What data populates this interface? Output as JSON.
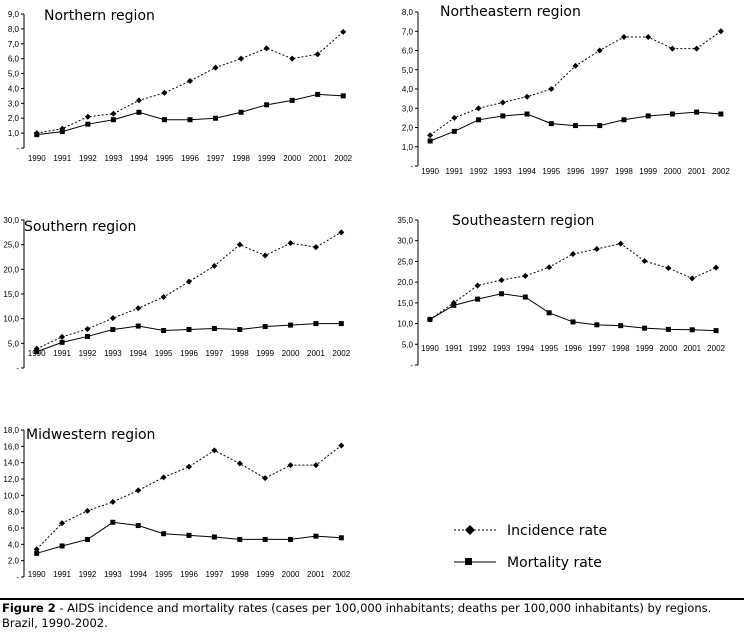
{
  "chart_data": [
    {
      "type": "line",
      "title": "Northern region",
      "x": [
        "1990",
        "1991",
        "1992",
        "1993",
        "1994",
        "1995",
        "1996",
        "1997",
        "1998",
        "1999",
        "2000",
        "2001",
        "2002"
      ],
      "yticks": [
        "-",
        "1,0",
        "2,0",
        "3,0",
        "4,0",
        "5,0",
        "6,0",
        "7,0",
        "8,0",
        "9,0"
      ],
      "ylim": [
        0,
        9
      ],
      "series": [
        {
          "name": "Incidence rate",
          "values": [
            1.0,
            1.3,
            2.1,
            2.3,
            3.2,
            3.7,
            4.5,
            5.4,
            6.0,
            6.7,
            6.0,
            6.3,
            7.8
          ]
        },
        {
          "name": "Mortality rate",
          "values": [
            0.9,
            1.1,
            1.6,
            1.9,
            2.4,
            1.9,
            1.9,
            2.0,
            2.4,
            2.9,
            3.2,
            3.6,
            3.5
          ]
        }
      ]
    },
    {
      "type": "line",
      "title": "Northeastern region",
      "x": [
        "1990",
        "1991",
        "1992",
        "1993",
        "1994",
        "1995",
        "1996",
        "1997",
        "1998",
        "1999",
        "2000",
        "2001",
        "2002"
      ],
      "yticks": [
        "-",
        "1,0",
        "2,0",
        "3,0",
        "4,0",
        "5,0",
        "6,0",
        "7,0",
        "8,0"
      ],
      "ylim": [
        0,
        8
      ],
      "series": [
        {
          "name": "Incidence rate",
          "values": [
            1.6,
            2.5,
            3.0,
            3.3,
            3.6,
            4.0,
            5.2,
            6.0,
            6.7,
            6.7,
            6.1,
            6.1,
            7.0
          ]
        },
        {
          "name": "Mortality rate",
          "values": [
            1.3,
            1.8,
            2.4,
            2.6,
            2.7,
            2.2,
            2.1,
            2.1,
            2.4,
            2.6,
            2.7,
            2.8,
            2.7
          ]
        }
      ]
    },
    {
      "type": "line",
      "title": "Southern region",
      "x": [
        "1990",
        "1991",
        "1992",
        "1993",
        "1994",
        "1995",
        "1996",
        "1997",
        "1998",
        "1999",
        "2000",
        "2001",
        "2002"
      ],
      "yticks": [
        "-",
        "5,0",
        "10,0",
        "15,0",
        "20,0",
        "25,0",
        "30,0"
      ],
      "ylim": [
        0,
        30
      ],
      "series": [
        {
          "name": "Incidence rate",
          "values": [
            3.9,
            6.3,
            7.9,
            10.1,
            12.1,
            14.4,
            17.5,
            20.7,
            25.0,
            22.8,
            25.3,
            24.5,
            27.5
          ]
        },
        {
          "name": "Mortality rate",
          "values": [
            3.3,
            5.2,
            6.4,
            7.8,
            8.5,
            7.6,
            7.8,
            8.0,
            7.8,
            8.4,
            8.7,
            9.0,
            9.0
          ]
        }
      ]
    },
    {
      "type": "line",
      "title": "Southeastern region",
      "x": [
        "1990",
        "1991",
        "1992",
        "1993",
        "1994",
        "1995",
        "1996",
        "1997",
        "1998",
        "1999",
        "2000",
        "2001",
        "2002"
      ],
      "yticks": [
        "-",
        "5,0",
        "10,0",
        "15,0",
        "20,0",
        "25,0",
        "30,0",
        "35,0"
      ],
      "ylim": [
        0,
        35
      ],
      "series": [
        {
          "name": "Incidence rate",
          "values": [
            11.0,
            15.0,
            19.2,
            20.5,
            21.5,
            23.6,
            26.8,
            28.0,
            29.3,
            25.1,
            23.4,
            20.9,
            23.5
          ]
        },
        {
          "name": "Mortality rate",
          "values": [
            11.0,
            14.4,
            15.9,
            17.2,
            16.4,
            12.6,
            10.4,
            9.7,
            9.5,
            8.9,
            8.6,
            8.5,
            8.3
          ]
        }
      ]
    },
    {
      "type": "line",
      "title": "Midwestern region",
      "x": [
        "1990",
        "1991",
        "1992",
        "1993",
        "1994",
        "1995",
        "1996",
        "1997",
        "1998",
        "1999",
        "2000",
        "2001",
        "2002"
      ],
      "yticks": [
        "-",
        "2,0",
        "4,0",
        "6,0",
        "8,0",
        "10,0",
        "12,0",
        "14,0",
        "16,0",
        "18,0"
      ],
      "ylim": [
        0,
        18
      ],
      "series": [
        {
          "name": "Incidence rate",
          "values": [
            3.4,
            6.6,
            8.1,
            9.2,
            10.6,
            12.2,
            13.5,
            15.5,
            13.9,
            12.1,
            13.7,
            13.7,
            16.1
          ]
        },
        {
          "name": "Mortality rate",
          "values": [
            2.9,
            3.8,
            4.6,
            6.7,
            6.3,
            5.3,
            5.1,
            4.9,
            4.6,
            4.6,
            4.6,
            5.0,
            4.8
          ]
        }
      ]
    }
  ],
  "legend": {
    "incidence_label": "Incidence rate",
    "mortality_label": "Mortality rate"
  },
  "caption": {
    "figure_label": "Figure 2",
    "text": " - AIDS incidence and mortality rates (cases per 100,000 inhabitants; deaths per 100,000 inhabitants) by regions. Brazil, 1990-2002."
  }
}
